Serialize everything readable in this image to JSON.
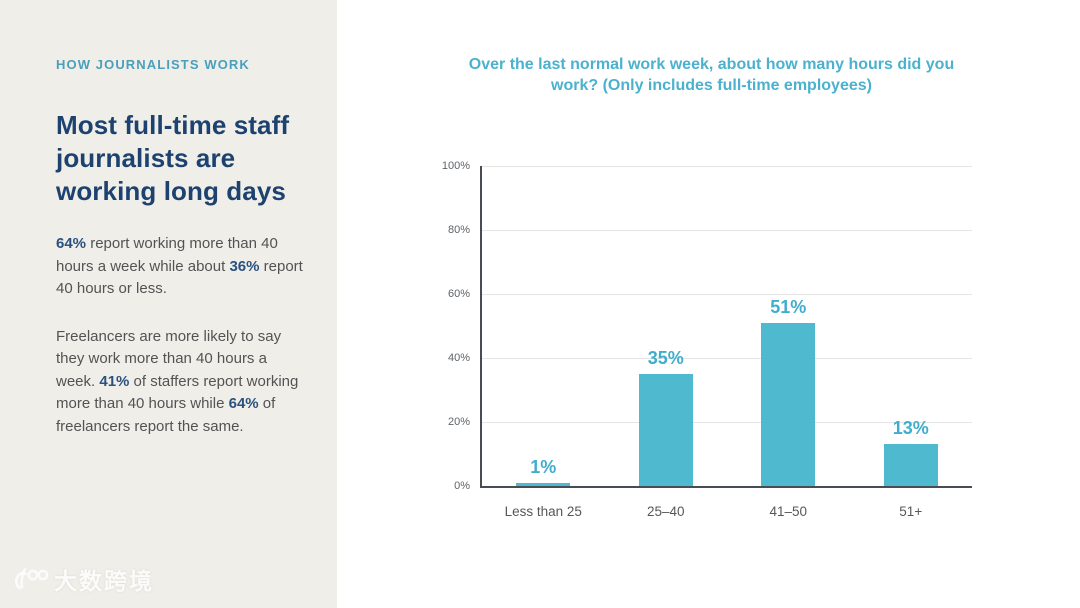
{
  "sidebar": {
    "eyebrow": "HOW JOURNALISTS WORK",
    "headline": "Most full-time staff journalists are working long days",
    "paragraphs": [
      [
        {
          "text": "64%",
          "bold": true
        },
        {
          "text": " report working more than 40 hours a week while about ",
          "bold": false
        },
        {
          "text": "36%",
          "bold": true
        },
        {
          "text": " report 40 hours or less.",
          "bold": false
        }
      ],
      [
        {
          "text": "Freelancers are more likely to say they work more than 40 hours a week. ",
          "bold": false
        },
        {
          "text": "41%",
          "bold": true
        },
        {
          "text": " of staffers report working more than 40 hours while ",
          "bold": false
        },
        {
          "text": "64%",
          "bold": true
        },
        {
          "text": " of freelancers report the same.",
          "bold": false
        }
      ]
    ]
  },
  "chart_data": {
    "type": "bar",
    "title": "Over the last normal work week, about how many hours did you work?  (Only includes full-time employees)",
    "categories": [
      "Less than 25",
      "25–40",
      "41–50",
      "51+"
    ],
    "values": [
      1,
      35,
      51,
      13
    ],
    "value_labels": [
      "1%",
      "35%",
      "51%",
      "13%"
    ],
    "xlabel": "",
    "ylabel": "",
    "ylim": [
      0,
      100
    ],
    "yticks": [
      0,
      20,
      40,
      60,
      80,
      100
    ],
    "ytick_labels": [
      "0%",
      "20%",
      "40%",
      "60%",
      "80%",
      "100%"
    ],
    "grid": true,
    "legend": false,
    "bar_color": "#4FB9D0",
    "value_label_color": "#3FAECD",
    "axis_color": "#474D53",
    "grid_color": "#E5E5E5"
  },
  "watermark": {
    "logo": "100",
    "text": "大数跨境"
  },
  "colors": {
    "sidebar_bg": "#F0EEE8",
    "main_bg": "#FFFFFF",
    "eyebrow": "#4A9FBC",
    "headline": "#1D4270",
    "body_text": "#535353",
    "body_bold": "#2A5180",
    "chart_title": "#4BB1CE"
  }
}
